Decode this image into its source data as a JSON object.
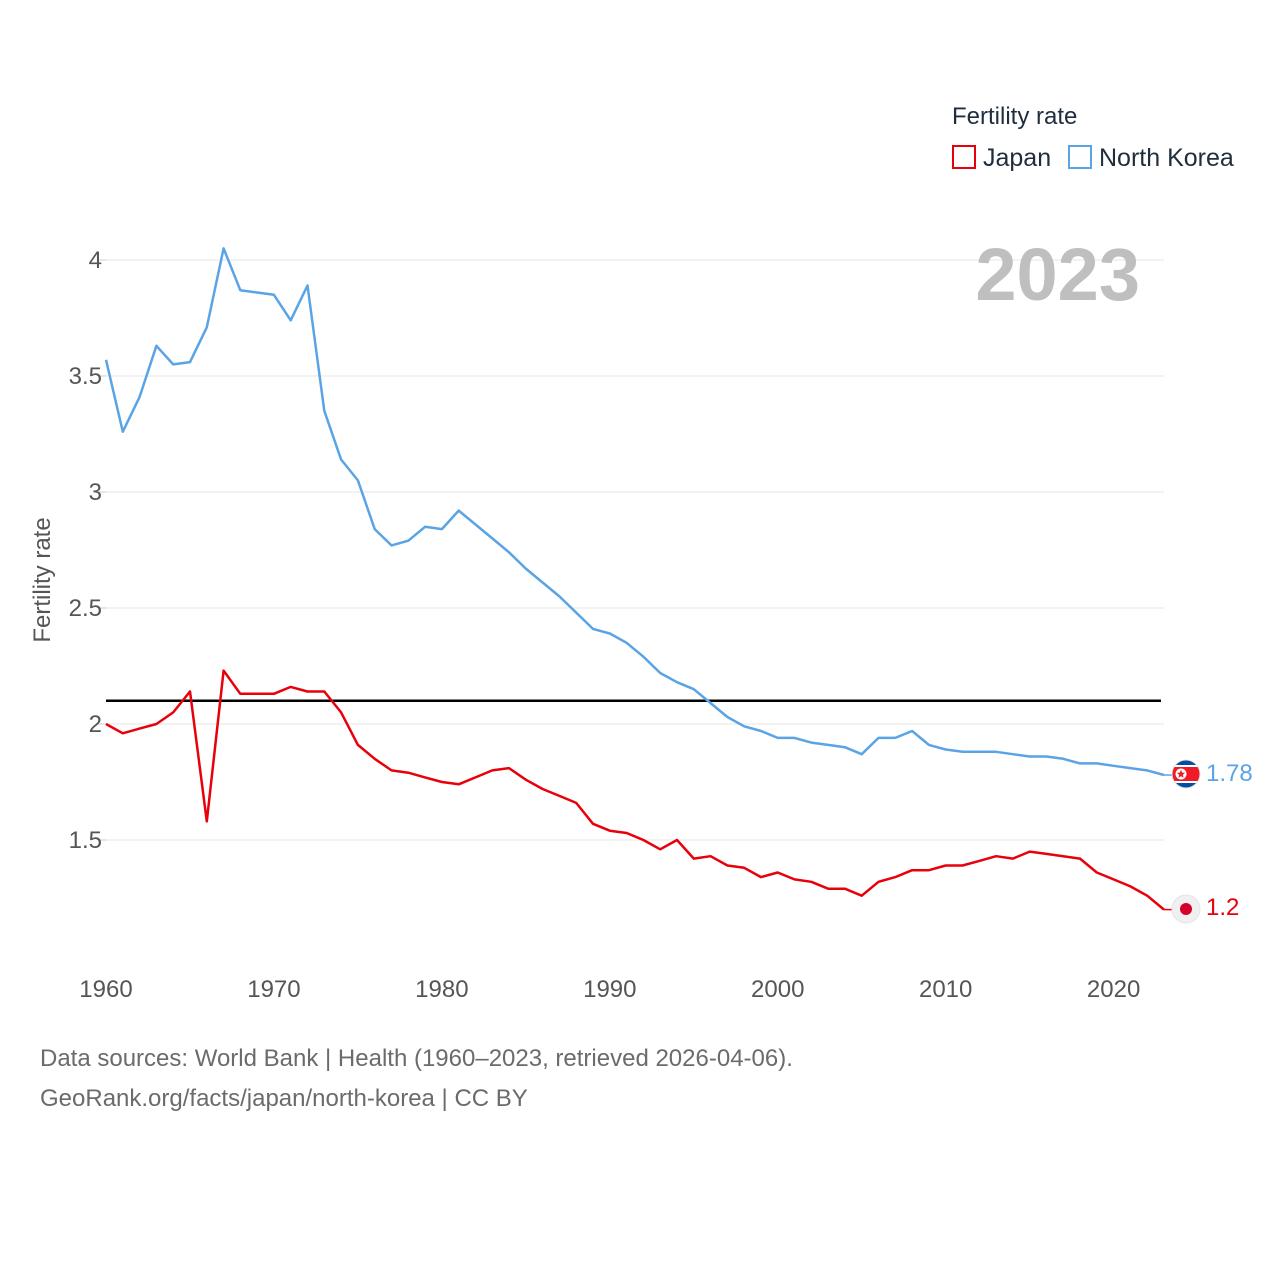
{
  "chart_data": {
    "type": "line",
    "title": "",
    "xlabel": "",
    "ylabel": "Fertility rate",
    "xlim": [
      1960,
      2023
    ],
    "ylim": [
      1.0,
      4.2
    ],
    "x_ticks": [
      1960,
      1970,
      1980,
      1990,
      2000,
      2010,
      2020
    ],
    "y_ticks": [
      1.5,
      2,
      2.5,
      3,
      3.5,
      4
    ],
    "year_label": "2023",
    "reference_line": 2.1,
    "legend": {
      "title": "Fertility rate",
      "position": "top-right"
    },
    "x": [
      1960,
      1961,
      1962,
      1963,
      1964,
      1965,
      1966,
      1967,
      1968,
      1969,
      1970,
      1971,
      1972,
      1973,
      1974,
      1975,
      1976,
      1977,
      1978,
      1979,
      1980,
      1981,
      1982,
      1983,
      1984,
      1985,
      1986,
      1987,
      1988,
      1989,
      1990,
      1991,
      1992,
      1993,
      1994,
      1995,
      1996,
      1997,
      1998,
      1999,
      2000,
      2001,
      2002,
      2003,
      2004,
      2005,
      2006,
      2007,
      2008,
      2009,
      2010,
      2011,
      2012,
      2013,
      2014,
      2015,
      2016,
      2017,
      2018,
      2019,
      2020,
      2021,
      2022,
      2023
    ],
    "series": [
      {
        "name": "Japan",
        "color": "#e8000b",
        "end_label": "1.2",
        "values": [
          2.0,
          1.96,
          1.98,
          2.0,
          2.05,
          2.14,
          1.58,
          2.23,
          2.13,
          2.13,
          2.13,
          2.16,
          2.14,
          2.14,
          2.05,
          1.91,
          1.85,
          1.8,
          1.79,
          1.77,
          1.75,
          1.74,
          1.77,
          1.8,
          1.81,
          1.76,
          1.72,
          1.69,
          1.66,
          1.57,
          1.54,
          1.53,
          1.5,
          1.46,
          1.5,
          1.42,
          1.43,
          1.39,
          1.38,
          1.34,
          1.36,
          1.33,
          1.32,
          1.29,
          1.29,
          1.26,
          1.32,
          1.34,
          1.37,
          1.37,
          1.39,
          1.39,
          1.41,
          1.43,
          1.42,
          1.45,
          1.44,
          1.43,
          1.42,
          1.36,
          1.33,
          1.3,
          1.26,
          1.2
        ]
      },
      {
        "name": "North Korea",
        "color": "#5aa4e6",
        "end_label": "1.78",
        "values": [
          3.57,
          3.26,
          3.41,
          3.63,
          3.55,
          3.56,
          3.71,
          4.05,
          3.87,
          3.86,
          3.85,
          3.74,
          3.89,
          3.35,
          3.14,
          3.05,
          2.84,
          2.77,
          2.79,
          2.85,
          2.84,
          2.92,
          2.86,
          2.8,
          2.74,
          2.67,
          2.61,
          2.55,
          2.48,
          2.41,
          2.39,
          2.35,
          2.29,
          2.22,
          2.18,
          2.15,
          2.09,
          2.03,
          1.99,
          1.97,
          1.94,
          1.94,
          1.92,
          1.91,
          1.9,
          1.87,
          1.94,
          1.94,
          1.97,
          1.91,
          1.89,
          1.88,
          1.88,
          1.88,
          1.87,
          1.86,
          1.86,
          1.85,
          1.83,
          1.83,
          1.82,
          1.81,
          1.8,
          1.78
        ]
      }
    ]
  },
  "footer": {
    "sources": "Data sources: World Bank | Health (1960–2023, retrieved 2026-04-06).",
    "credit": "GeoRank.org/facts/japan/north-korea | CC BY"
  },
  "flags": {
    "japan": "japan-flag-icon",
    "north_korea": "north-korea-flag-icon"
  }
}
